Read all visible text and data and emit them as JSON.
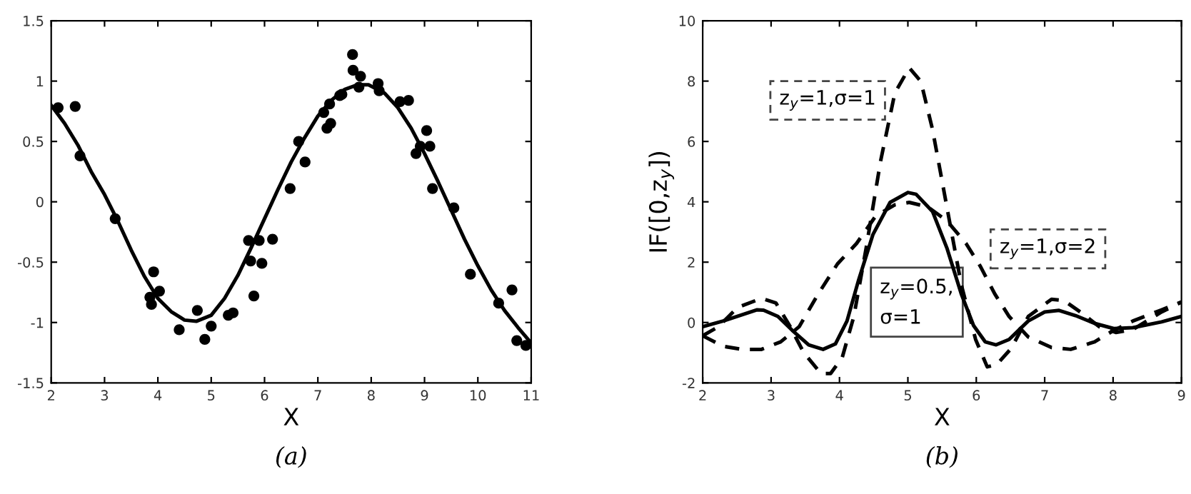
{
  "chart_data": [
    {
      "type": "scatter",
      "xlabel": "X",
      "annotations": [
        "(a)"
      ],
      "xlim": [
        2,
        11
      ],
      "ylim": [
        -1.5,
        1.5
      ],
      "xticks": [
        2,
        3,
        4,
        5,
        6,
        7,
        8,
        9,
        10,
        11
      ],
      "yticks": [
        -1.5,
        -1,
        -0.5,
        0,
        0.5,
        1,
        1.5
      ],
      "grid": false,
      "legend": false,
      "series": [
        {
          "color": "#000000",
          "marker": "circle",
          "x": [
            2.13,
            2.45,
            2.54,
            3.2,
            3.92,
            3.85,
            3.88,
            4.03,
            4.4,
            4.74,
            4.88,
            5.0,
            5.32,
            5.41,
            5.7,
            5.74,
            5.8,
            5.9,
            5.95,
            6.15,
            6.48,
            6.64,
            6.76,
            7.11,
            7.22,
            7.17,
            7.24,
            7.41,
            7.45,
            7.65,
            7.66,
            7.8,
            7.77,
            8.13,
            8.15,
            8.54,
            8.7,
            8.84,
            8.92,
            9.04,
            9.1,
            9.15,
            9.55,
            9.86,
            10.39,
            10.64,
            10.73,
            10.9
          ],
          "values": [
            0.78,
            0.79,
            0.38,
            -0.14,
            -0.58,
            -0.79,
            -0.85,
            -0.74,
            -1.06,
            -0.9,
            -1.14,
            -1.03,
            -0.94,
            -0.92,
            -0.32,
            -0.49,
            -0.78,
            -0.32,
            -0.51,
            -0.31,
            0.11,
            0.5,
            0.33,
            0.74,
            0.81,
            0.61,
            0.65,
            0.88,
            0.89,
            1.22,
            1.09,
            1.04,
            0.95,
            0.98,
            0.92,
            0.83,
            0.84,
            0.4,
            0.46,
            0.59,
            0.46,
            0.11,
            -0.05,
            -0.6,
            -0.84,
            -0.73,
            -1.15,
            -1.19
          ]
        },
        {
          "type": "line",
          "color": "#000000",
          "line_style": "solid",
          "x": [
            2,
            2.25,
            2.5,
            2.75,
            3,
            3.25,
            3.5,
            3.75,
            4,
            4.25,
            4.5,
            4.72,
            5,
            5.25,
            5.5,
            5.75,
            6,
            6.25,
            6.5,
            6.75,
            7,
            7.25,
            7.5,
            7.75,
            7.95,
            8.25,
            8.5,
            8.75,
            9,
            9.25,
            9.5,
            9.75,
            10,
            10.25,
            10.5,
            10.75,
            11
          ],
          "values": [
            0.8,
            0.65,
            0.47,
            0.25,
            0.06,
            -0.16,
            -0.4,
            -0.62,
            -0.8,
            -0.91,
            -0.98,
            -0.99,
            -0.94,
            -0.8,
            -0.61,
            -0.38,
            -0.14,
            0.1,
            0.33,
            0.53,
            0.71,
            0.84,
            0.93,
            0.97,
            0.97,
            0.9,
            0.78,
            0.61,
            0.4,
            0.17,
            -0.07,
            -0.31,
            -0.53,
            -0.73,
            -0.9,
            -1.04,
            -1.17
          ]
        }
      ]
    },
    {
      "type": "line",
      "xlabel": "X",
      "ylabel": "IF([0,z$_{y}$])",
      "annotations": [
        "(b)"
      ],
      "xlim": [
        2,
        9
      ],
      "ylim": [
        -2,
        10
      ],
      "xticks": [
        2,
        3,
        4,
        5,
        6,
        7,
        8,
        9
      ],
      "yticks": [
        -2,
        0,
        2,
        4,
        6,
        8,
        10
      ],
      "grid": false,
      "legend": false,
      "series": [
        {
          "name": "z$_{y}$=0.5,\nσ=1",
          "color": "#000000",
          "line_style": "solid",
          "x": [
            2,
            2.3,
            2.79,
            2.89,
            3.1,
            3.31,
            3.55,
            3.76,
            3.94,
            4.11,
            4.28,
            4.49,
            4.74,
            5.0,
            5.12,
            5.36,
            5.57,
            5.78,
            5.96,
            6.13,
            6.29,
            6.48,
            6.76,
            7.0,
            7.21,
            7.45,
            7.73,
            8.01,
            8.29,
            8.71,
            9
          ],
          "values": [
            -0.14,
            0.05,
            0.42,
            0.41,
            0.2,
            -0.26,
            -0.74,
            -0.89,
            -0.71,
            0.05,
            1.41,
            2.92,
            3.98,
            4.31,
            4.25,
            3.68,
            2.47,
            0.95,
            -0.1,
            -0.64,
            -0.74,
            -0.56,
            0.05,
            0.35,
            0.4,
            0.23,
            -0.03,
            -0.2,
            -0.17,
            0.02,
            0.2
          ]
        },
        {
          "name": "z$_{y}$=1,σ=1",
          "color": "#000000",
          "line_style": "dashed",
          "x": [
            2,
            2.23,
            2.51,
            2.86,
            3.07,
            3.27,
            3.48,
            3.73,
            3.87,
            4.04,
            4.21,
            4.39,
            4.6,
            4.81,
            5.02,
            5.19,
            5.36,
            5.57,
            5.78,
            5.99,
            6.16,
            6.3,
            6.51,
            6.76,
            7.1,
            7.28,
            7.52,
            7.8,
            8.04,
            8.29,
            8.71,
            9
          ],
          "values": [
            -0.44,
            -0.14,
            0.5,
            0.8,
            0.65,
            -0.1,
            -1.01,
            -1.69,
            -1.69,
            -1.16,
            0.2,
            2.47,
            5.34,
            7.61,
            8.44,
            7.99,
            6.4,
            3.83,
            1.26,
            -0.56,
            -1.47,
            -1.39,
            -0.86,
            0.2,
            0.77,
            0.73,
            0.35,
            -0.14,
            -0.33,
            -0.23,
            0.35,
            0.68
          ]
        },
        {
          "name": "z$_{y}$=1,σ=2",
          "color": "#000000",
          "line_style": "dashed",
          "x": [
            2,
            2.3,
            2.58,
            2.86,
            3.14,
            3.41,
            3.69,
            3.97,
            4.25,
            4.53,
            4.81,
            5.02,
            5.29,
            5.57,
            5.85,
            6.06,
            6.27,
            6.48,
            6.76,
            7.1,
            7.38,
            7.73,
            8.01,
            8.29,
            8.71,
            9
          ],
          "values": [
            -0.44,
            -0.79,
            -0.89,
            -0.89,
            -0.64,
            -0.14,
            0.95,
            1.94,
            2.62,
            3.53,
            3.9,
            3.98,
            3.83,
            3.37,
            2.62,
            1.86,
            0.95,
            0.2,
            -0.48,
            -0.83,
            -0.89,
            -0.64,
            -0.26,
            0.05,
            0.42,
            0.68
          ]
        }
      ]
    }
  ]
}
